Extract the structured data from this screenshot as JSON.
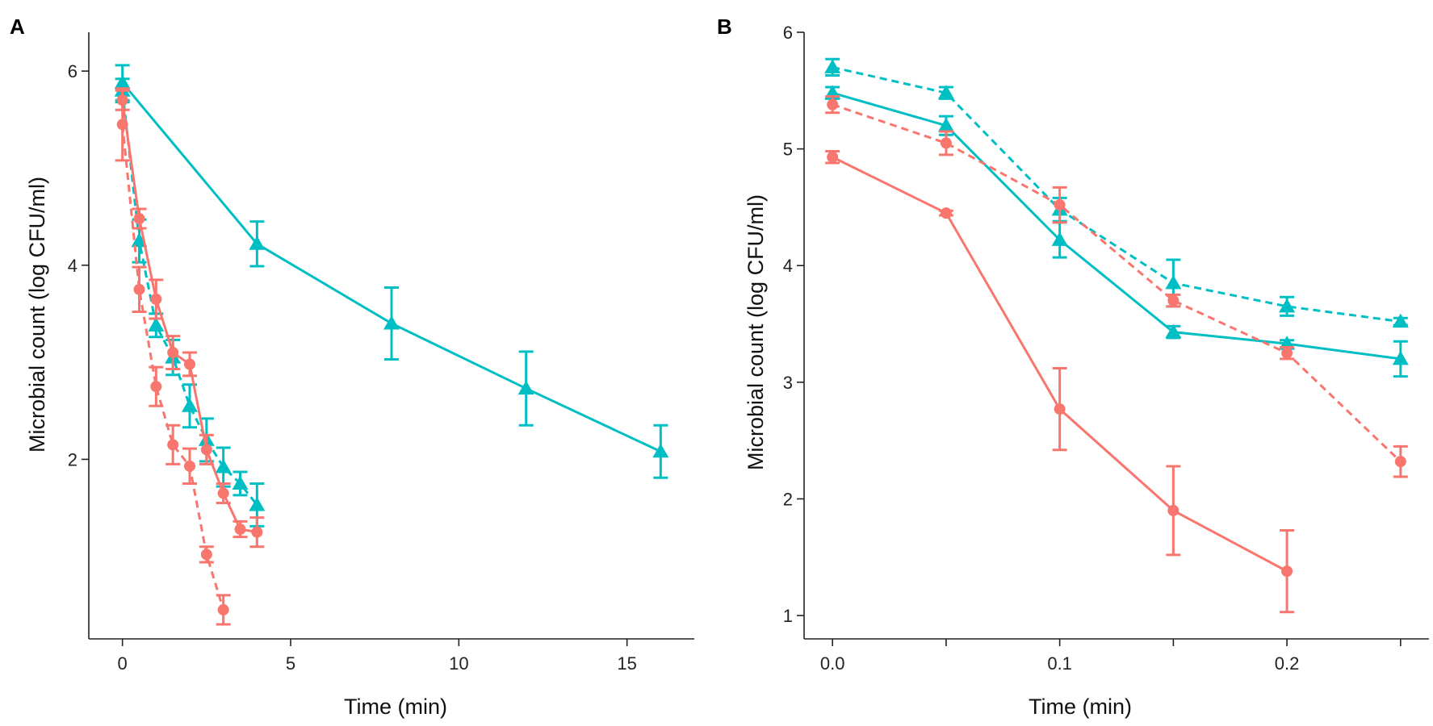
{
  "figure": {
    "panels": [
      "A",
      "B"
    ]
  },
  "colors": {
    "red": "#F8766D",
    "teal": "#00BFC4"
  },
  "chart_data": [
    {
      "panel": "A",
      "type": "line",
      "title": "",
      "xlabel": "Time (min)",
      "ylabel": "Microbial count (log CFU/ml)",
      "xlim": [
        -1,
        17
      ],
      "ylim": [
        0.15,
        6.4
      ],
      "xticks": [
        0,
        5,
        10,
        15
      ],
      "xtick_labels": [
        "0",
        "5",
        "10",
        "15"
      ],
      "yticks": [
        2,
        4,
        6
      ],
      "ytick_labels": [
        "2",
        "4",
        "6"
      ],
      "series": [
        {
          "name": "teal-solid",
          "color": "teal",
          "dash": "solid",
          "marker": "triangle",
          "x": [
            0,
            4,
            8,
            12,
            16
          ],
          "y": [
            5.88,
            4.22,
            3.4,
            2.73,
            2.08
          ],
          "err": [
            0.18,
            0.23,
            0.37,
            0.38,
            0.27
          ]
        },
        {
          "name": "teal-dashed",
          "color": "teal",
          "dash": "dashed",
          "marker": "triangle",
          "x": [
            0,
            0.5,
            1,
            1.5,
            2,
            2.5,
            3,
            3.5,
            4
          ],
          "y": [
            5.8,
            4.25,
            3.38,
            3.05,
            2.55,
            2.2,
            1.92,
            1.75,
            1.53
          ],
          "err": [
            0.12,
            0.22,
            0.12,
            0.18,
            0.22,
            0.22,
            0.2,
            0.12,
            0.22
          ]
        },
        {
          "name": "red-solid",
          "color": "red",
          "dash": "solid",
          "marker": "circle",
          "x": [
            0,
            0.5,
            1,
            1.5,
            2,
            2.5,
            3,
            3.5,
            4
          ],
          "y": [
            5.7,
            4.48,
            3.65,
            3.1,
            2.98,
            2.1,
            1.65,
            1.28,
            1.25
          ],
          "err": [
            0.1,
            0.1,
            0.2,
            0.17,
            0.12,
            0.15,
            0.1,
            0.08,
            0.15
          ]
        },
        {
          "name": "red-dashed",
          "color": "red",
          "dash": "dashed",
          "marker": "circle",
          "x": [
            0,
            0.5,
            1,
            1.5,
            2,
            2.5,
            3
          ],
          "y": [
            5.45,
            3.75,
            2.75,
            2.15,
            1.93,
            1.02,
            0.45
          ],
          "err": [
            0.37,
            0.23,
            0.2,
            0.2,
            0.18,
            0.08,
            0.15
          ]
        }
      ]
    },
    {
      "panel": "B",
      "type": "line",
      "title": "",
      "xlabel": "Time (min)",
      "ylabel": "Microbial count (log CFU/ml)",
      "xlim": [
        -0.0125,
        0.2625
      ],
      "ylim": [
        0.8,
        6.0
      ],
      "xticks": [
        0,
        0.05,
        0.1,
        0.15,
        0.2,
        0.25
      ],
      "xtick_labels": [
        "0.0",
        "",
        "0.1",
        "",
        "0.2",
        ""
      ],
      "yticks": [
        1,
        2,
        3,
        4,
        5,
        6
      ],
      "ytick_labels": [
        "1",
        "2",
        "3",
        "4",
        "5",
        "6"
      ],
      "series": [
        {
          "name": "teal-dashed",
          "color": "teal",
          "dash": "dashed",
          "marker": "triangle",
          "x": [
            0,
            0.05,
            0.1,
            0.15,
            0.2,
            0.25
          ],
          "y": [
            5.7,
            5.48,
            4.48,
            3.85,
            3.65,
            3.52
          ],
          "err": [
            0.07,
            0.05,
            0.1,
            0.2,
            0.08,
            0.03
          ]
        },
        {
          "name": "teal-solid",
          "color": "teal",
          "dash": "solid",
          "marker": "triangle",
          "x": [
            0,
            0.05,
            0.1,
            0.15,
            0.2,
            0.25
          ],
          "y": [
            5.48,
            5.2,
            4.22,
            3.43,
            3.33,
            3.2
          ],
          "err": [
            0.05,
            0.08,
            0.15,
            0.05,
            0.03,
            0.15
          ]
        },
        {
          "name": "red-dashed",
          "color": "red",
          "dash": "dashed",
          "marker": "circle",
          "x": [
            0,
            0.05,
            0.1,
            0.15,
            0.2,
            0.25
          ],
          "y": [
            5.38,
            5.05,
            4.52,
            3.7,
            3.25,
            2.32
          ],
          "err": [
            0.07,
            0.1,
            0.15,
            0.05,
            0.05,
            0.13
          ]
        },
        {
          "name": "red-solid",
          "color": "red",
          "dash": "solid",
          "marker": "circle",
          "x": [
            0,
            0.05,
            0.1,
            0.15,
            0.2
          ],
          "y": [
            4.93,
            4.45,
            2.77,
            1.9,
            1.38
          ],
          "err": [
            0.05,
            0.02,
            0.35,
            0.38,
            0.35
          ]
        }
      ]
    }
  ]
}
